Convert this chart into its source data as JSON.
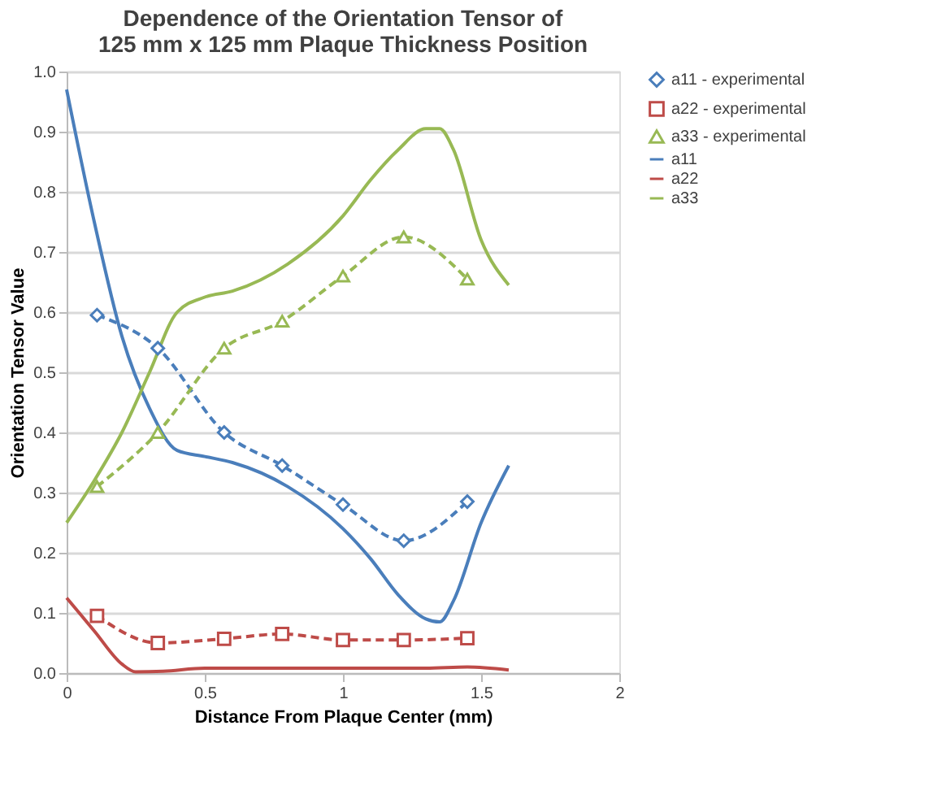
{
  "chart_data": {
    "type": "line",
    "title": [
      "Dependence of the Orientation Tensor of",
      "125 mm x 125 mm Plaque Thickness Position"
    ],
    "xlabel": "Distance From Plaque Center (mm)",
    "ylabel": "Orientation Tensor Value",
    "xlim": [
      0,
      2
    ],
    "xticks": [
      0,
      0.5,
      1,
      1.5,
      2
    ],
    "ylim": [
      0,
      1
    ],
    "yticks": [
      {
        "value": 0,
        "label": "0.0"
      },
      {
        "value": 0.1,
        "label": "0.1"
      },
      {
        "value": 0.2,
        "label": "0.2"
      },
      {
        "value": 0.3,
        "label": "0.3"
      },
      {
        "value": 0.4,
        "label": "0.4"
      },
      {
        "value": 0.5,
        "label": "0.5"
      },
      {
        "value": 0.6,
        "label": "0.6"
      },
      {
        "value": 0.7,
        "label": "0.7"
      },
      {
        "value": 0.8,
        "label": "0.8"
      },
      {
        "value": 0.9,
        "label": "0.9"
      },
      {
        "value": 1,
        "label": "1.0"
      }
    ],
    "grid": "y",
    "legend": "right",
    "series": [
      {
        "name": "a11 - experimental",
        "color": "#4a7ebb",
        "marker": "diamond",
        "line_style": "dashed",
        "x": [
          0.11,
          0.33,
          0.57,
          0.78,
          1.0,
          1.22,
          1.45
        ],
        "values": [
          0.595,
          0.54,
          0.4,
          0.345,
          0.28,
          0.22,
          0.285
        ]
      },
      {
        "name": "a22 - experimental",
        "color": "#be4b48",
        "marker": "square",
        "line_style": "dashed",
        "x": [
          0.11,
          0.33,
          0.57,
          0.78,
          1.0,
          1.22,
          1.45
        ],
        "values": [
          0.095,
          0.05,
          0.057,
          0.065,
          0.055,
          0.055,
          0.058
        ]
      },
      {
        "name": "a33 - experimental",
        "color": "#98b954",
        "marker": "triangle",
        "line_style": "dashed",
        "x": [
          0.11,
          0.33,
          0.57,
          0.78,
          1.0,
          1.22,
          1.45
        ],
        "values": [
          0.31,
          0.4,
          0.54,
          0.585,
          0.66,
          0.725,
          0.655
        ]
      },
      {
        "name": "a11",
        "color": "#4a7ebb",
        "marker": "none",
        "line_style": "solid",
        "x": [
          0,
          0.1,
          0.2,
          0.3,
          0.4,
          0.5,
          0.6,
          0.8,
          1.0,
          1.1,
          1.2,
          1.3,
          1.35,
          1.4,
          1.5,
          1.6
        ],
        "values": [
          0.97,
          0.75,
          0.56,
          0.44,
          0.37,
          0.36,
          0.35,
          0.31,
          0.24,
          0.19,
          0.13,
          0.09,
          0.085,
          0.12,
          0.25,
          0.345
        ]
      },
      {
        "name": "a22",
        "color": "#be4b48",
        "marker": "none",
        "line_style": "solid",
        "x": [
          0,
          0.1,
          0.2,
          0.25,
          0.35,
          0.5,
          1.0,
          1.3,
          1.45,
          1.6
        ],
        "values": [
          0.125,
          0.07,
          0.015,
          0.002,
          0.003,
          0.008,
          0.008,
          0.008,
          0.01,
          0.005
        ]
      },
      {
        "name": "a33",
        "color": "#98b954",
        "marker": "none",
        "line_style": "solid",
        "x": [
          0,
          0.1,
          0.2,
          0.3,
          0.4,
          0.5,
          0.6,
          0.8,
          1.0,
          1.1,
          1.2,
          1.3,
          1.35,
          1.4,
          1.5,
          1.6
        ],
        "values": [
          0.25,
          0.32,
          0.4,
          0.5,
          0.6,
          0.625,
          0.635,
          0.68,
          0.76,
          0.82,
          0.87,
          0.905,
          0.905,
          0.87,
          0.72,
          0.645
        ]
      }
    ]
  }
}
